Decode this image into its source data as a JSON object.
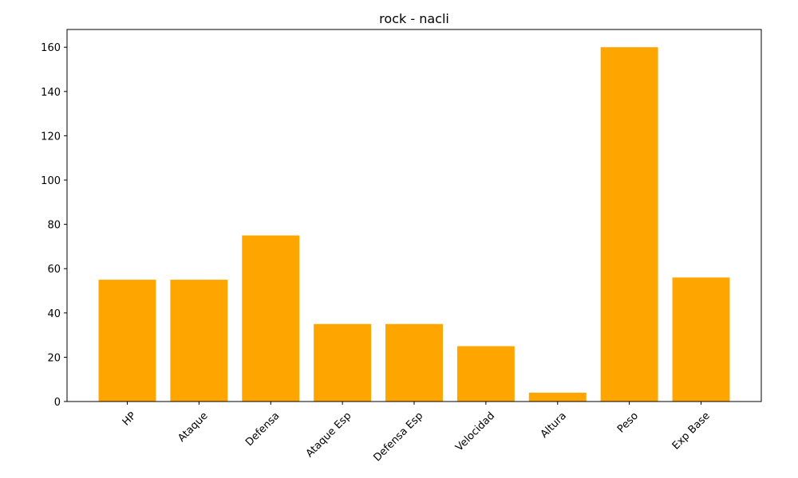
{
  "chart_data": {
    "type": "bar",
    "title": "rock - nacli",
    "xlabel": "",
    "ylabel": "",
    "categories": [
      "HP",
      "Ataque",
      "Defensa",
      "Ataque Esp",
      "Defensa Esp",
      "Velocidad",
      "Altura",
      "Peso",
      "Exp Base"
    ],
    "values": [
      55,
      55,
      75,
      35,
      35,
      25,
      4,
      160,
      56
    ],
    "ylim": [
      0,
      168
    ],
    "yticks": [
      0,
      20,
      40,
      60,
      80,
      100,
      120,
      140,
      160
    ],
    "bar_color": "#FFA500",
    "grid": false,
    "legend": "none",
    "xtick_rotation": 45
  }
}
